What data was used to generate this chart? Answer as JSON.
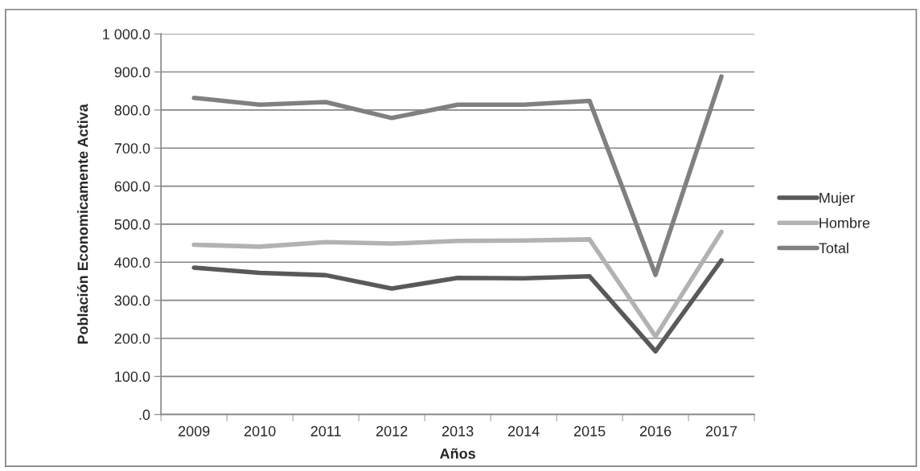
{
  "chart_data": {
    "type": "line",
    "xlabel": "Años",
    "ylabel": "Población Economicamente Activa",
    "categories": [
      "2009",
      "2010",
      "2011",
      "2012",
      "2013",
      "2014",
      "2015",
      "2016",
      "2017"
    ],
    "series": [
      {
        "name": "Mujer",
        "color": "#595959",
        "values": [
          386,
          372,
          366,
          331,
          359,
          358,
          363,
          166,
          405
        ]
      },
      {
        "name": "Hombre",
        "color": "#b2b2b2",
        "values": [
          446,
          441,
          453,
          449,
          456,
          457,
          460,
          205,
          480
        ]
      },
      {
        "name": "Total",
        "color": "#808080",
        "values": [
          832,
          814,
          821,
          779,
          814,
          814,
          824,
          367,
          888
        ]
      }
    ],
    "ylim": [
      0,
      1000
    ],
    "yticks": [
      {
        "value": 0,
        "label": ".0"
      },
      {
        "value": 100,
        "label": "100.0"
      },
      {
        "value": 200,
        "label": "200.0"
      },
      {
        "value": 300,
        "label": "300.0"
      },
      {
        "value": 400,
        "label": "400.0"
      },
      {
        "value": 500,
        "label": "500.0"
      },
      {
        "value": 600,
        "label": "600.0"
      },
      {
        "value": 700,
        "label": "700.0"
      },
      {
        "value": 800,
        "label": "800.0"
      },
      {
        "value": 900,
        "label": "900.0"
      },
      {
        "value": 1000,
        "label": "1 000.0"
      }
    ],
    "grid": "y",
    "legend": "right",
    "marker": "none",
    "line_style": "solid"
  }
}
